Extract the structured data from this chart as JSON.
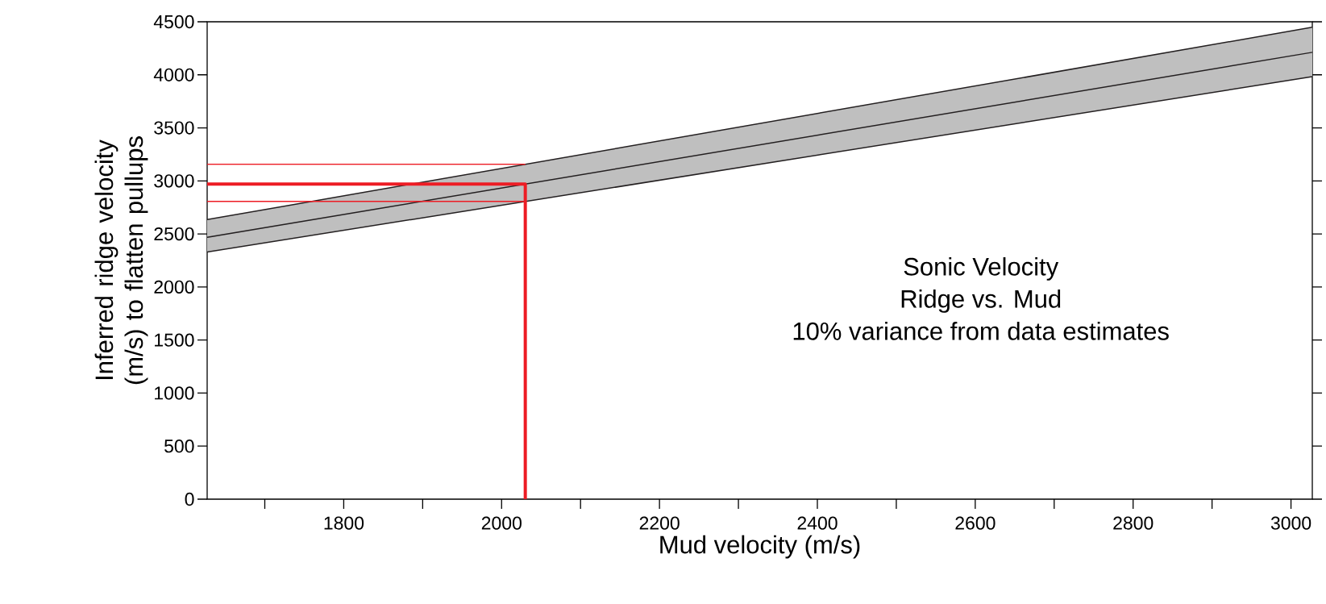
{
  "chart_data": {
    "type": "line",
    "xlabel": "Mud velocity (m/s)",
    "ylabel": "Inferred ridge velocity (m/s) to flatten pullups",
    "xlim": [
      1627,
      3027
    ],
    "ylim": [
      0,
      4500
    ],
    "xticks": [
      {
        "value": 1700,
        "label": null
      },
      1800,
      {
        "value": 1900,
        "label": null
      },
      2000,
      {
        "value": 2100,
        "label": null
      },
      2200,
      {
        "value": 2300,
        "label": null
      },
      2400,
      {
        "value": 2500,
        "label": null
      },
      2600,
      {
        "value": 2700,
        "label": null
      },
      2800,
      {
        "value": 2900,
        "label": null
      },
      3000
    ],
    "yticks": [
      0,
      500,
      1000,
      1500,
      2000,
      2500,
      3000,
      3500,
      4000,
      4500
    ],
    "series": [
      {
        "x": [
          1627,
          3027
        ],
        "values": [
          2468,
          4212
        ],
        "lower": [
          2330,
          3983
        ],
        "upper": [
          2635,
          4448
        ],
        "color": "#231f20"
      },
      {
        "x": [
          1627,
          3027
        ],
        "values": [
          2635,
          4448
        ],
        "color": "#231f20"
      },
      {
        "x": [
          1627,
          3027
        ],
        "values": [
          2330,
          3983
        ],
        "color": "#231f20"
      },
      {
        "x": [
          1627,
          2030
        ],
        "values": [
          3157,
          3157
        ],
        "color": "#ed1c24"
      },
      {
        "x": [
          1627,
          2030
        ],
        "values": [
          2806,
          2806
        ],
        "color": "#ed1c24"
      },
      {
        "x": [
          1627,
          2030,
          2030
        ],
        "values": [
          2970,
          2970,
          0
        ],
        "color": "#ed1c24"
      }
    ],
    "annotations": [
      "Sonic Velocity",
      "Ridge vs. Mud",
      "10% variance from data estimates"
    ],
    "grid": false,
    "marker": "none",
    "line_style": "solid"
  }
}
